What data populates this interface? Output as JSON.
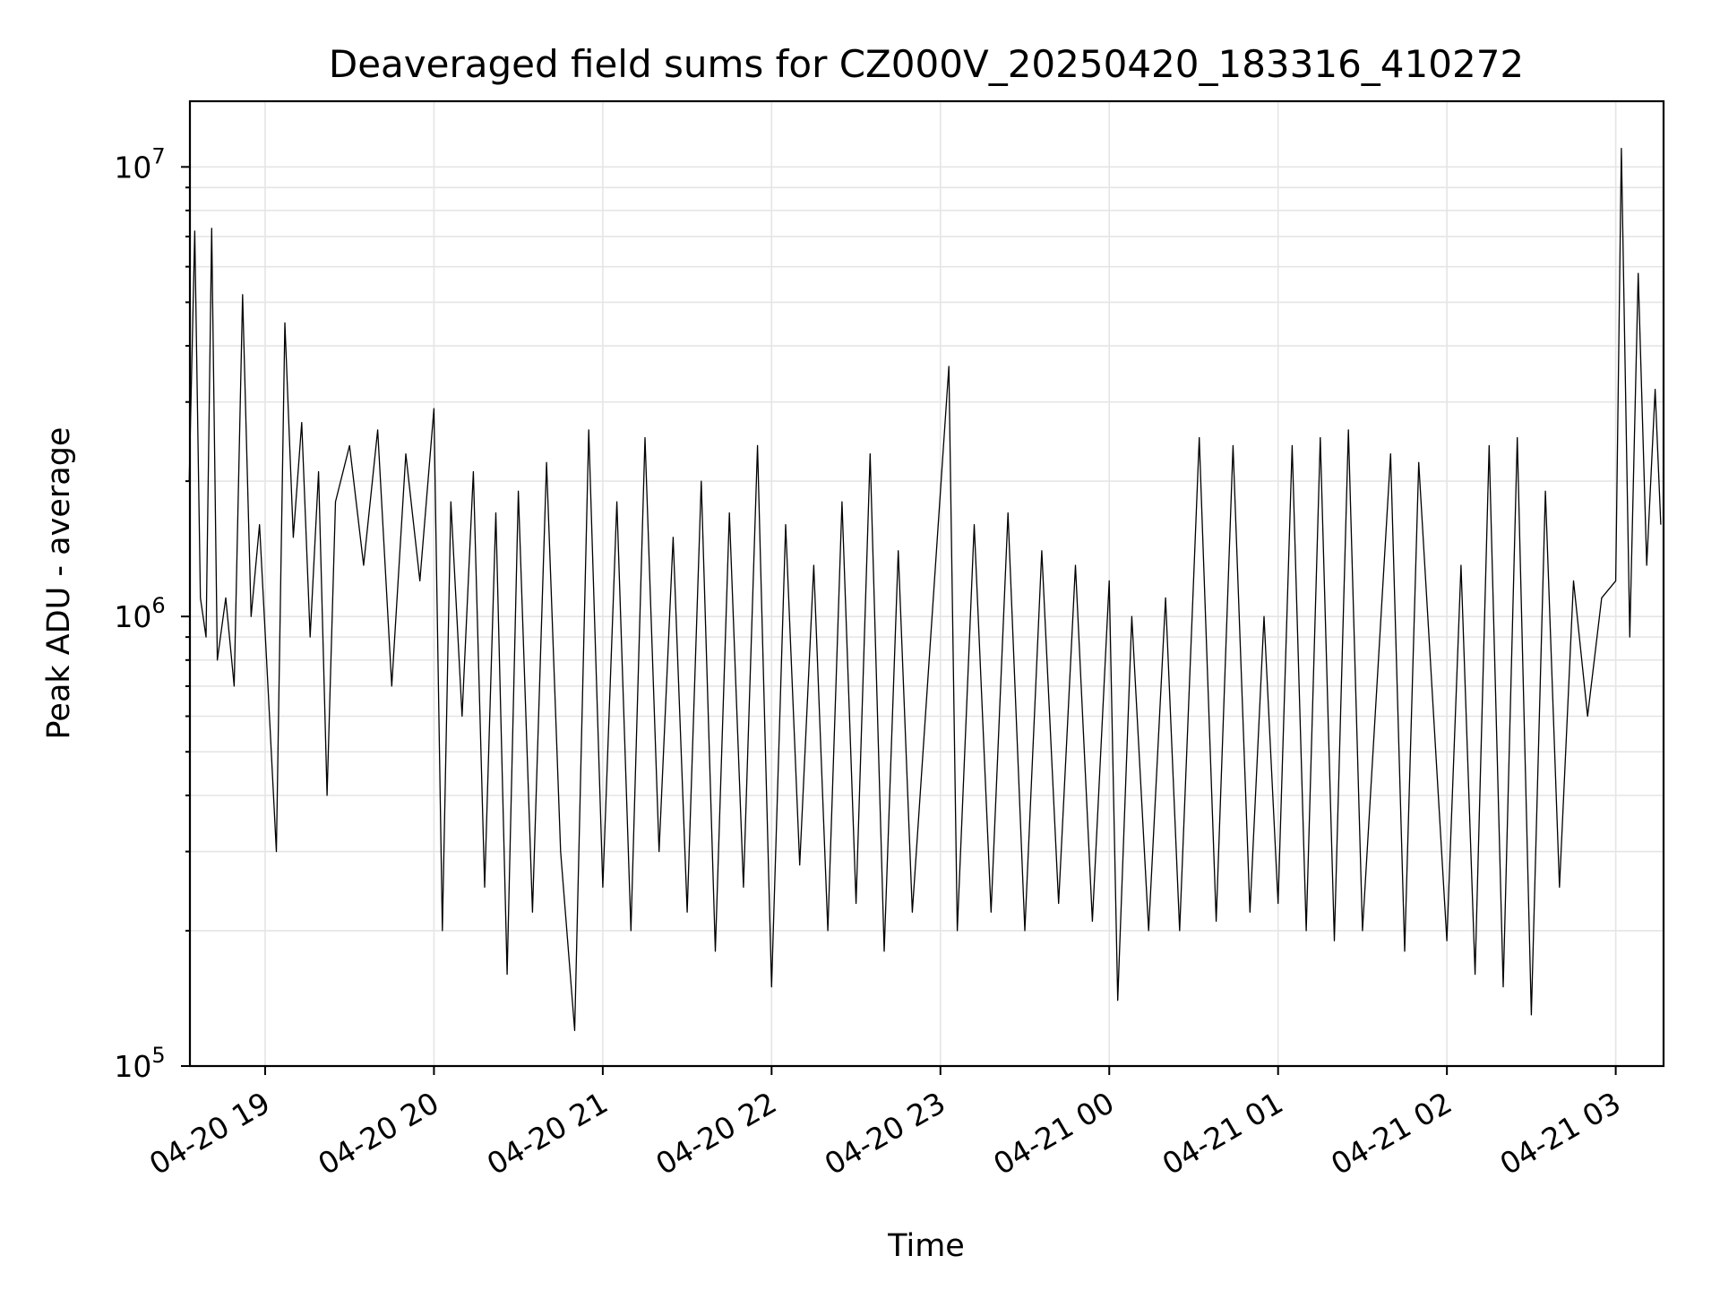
{
  "chart_data": {
    "type": "line",
    "title": "Deaveraged field sums for CZ000V_20250420_183316_410272",
    "xlabel": "Time",
    "ylabel": "Peak ADU - average",
    "yscale": "log",
    "ylim": [
      100000,
      14000000
    ],
    "xlim": [
      "2025-04-20 18:33:16",
      "2025-04-21 03:17:00"
    ],
    "grid": true,
    "line_color": "#000000",
    "x_ticks": [
      {
        "label": "04-20 19",
        "time": "2025-04-20 19:00"
      },
      {
        "label": "04-20 20",
        "time": "2025-04-20 20:00"
      },
      {
        "label": "04-20 21",
        "time": "2025-04-20 21:00"
      },
      {
        "label": "04-20 22",
        "time": "2025-04-20 22:00"
      },
      {
        "label": "04-20 23",
        "time": "2025-04-20 23:00"
      },
      {
        "label": "04-21 00",
        "time": "2025-04-21 00:00"
      },
      {
        "label": "04-21 01",
        "time": "2025-04-21 01:00"
      },
      {
        "label": "04-21 02",
        "time": "2025-04-21 02:00"
      },
      {
        "label": "04-21 03",
        "time": "2025-04-21 03:00"
      }
    ],
    "y_ticks": [
      {
        "base": "10",
        "exp": "5",
        "value": 100000
      },
      {
        "base": "10",
        "exp": "6",
        "value": 1000000
      },
      {
        "base": "10",
        "exp": "7",
        "value": 10000000
      }
    ],
    "series": [
      {
        "values_note_free": true,
        "points": [
          [
            "2025-04-20 18:33",
            2000000
          ],
          [
            "2025-04-20 18:35",
            7200000
          ],
          [
            "2025-04-20 18:37",
            1100000
          ],
          [
            "2025-04-20 18:39",
            900000
          ],
          [
            "2025-04-20 18:41",
            7300000
          ],
          [
            "2025-04-20 18:43",
            800000
          ],
          [
            "2025-04-20 18:46",
            1100000
          ],
          [
            "2025-04-20 18:49",
            700000
          ],
          [
            "2025-04-20 18:52",
            5200000
          ],
          [
            "2025-04-20 18:55",
            1000000
          ],
          [
            "2025-04-20 18:58",
            1600000
          ],
          [
            "2025-04-20 19:01",
            700000
          ],
          [
            "2025-04-20 19:04",
            300000
          ],
          [
            "2025-04-20 19:07",
            4500000
          ],
          [
            "2025-04-20 19:10",
            1500000
          ],
          [
            "2025-04-20 19:13",
            2700000
          ],
          [
            "2025-04-20 19:16",
            900000
          ],
          [
            "2025-04-20 19:19",
            2100000
          ],
          [
            "2025-04-20 19:22",
            400000
          ],
          [
            "2025-04-20 19:25",
            1800000
          ],
          [
            "2025-04-20 19:30",
            2400000
          ],
          [
            "2025-04-20 19:35",
            1300000
          ],
          [
            "2025-04-20 19:40",
            2600000
          ],
          [
            "2025-04-20 19:45",
            700000
          ],
          [
            "2025-04-20 19:50",
            2300000
          ],
          [
            "2025-04-20 19:55",
            1200000
          ],
          [
            "2025-04-20 20:00",
            2900000
          ],
          [
            "2025-04-20 20:03",
            200000
          ],
          [
            "2025-04-20 20:06",
            1800000
          ],
          [
            "2025-04-20 20:10",
            600000
          ],
          [
            "2025-04-20 20:14",
            2100000
          ],
          [
            "2025-04-20 20:18",
            250000
          ],
          [
            "2025-04-20 20:22",
            1700000
          ],
          [
            "2025-04-20 20:26",
            160000
          ],
          [
            "2025-04-20 20:30",
            1900000
          ],
          [
            "2025-04-20 20:35",
            220000
          ],
          [
            "2025-04-20 20:40",
            2200000
          ],
          [
            "2025-04-20 20:45",
            300000
          ],
          [
            "2025-04-20 20:50",
            120000
          ],
          [
            "2025-04-20 20:55",
            2600000
          ],
          [
            "2025-04-20 21:00",
            250000
          ],
          [
            "2025-04-20 21:05",
            1800000
          ],
          [
            "2025-04-20 21:10",
            200000
          ],
          [
            "2025-04-20 21:15",
            2500000
          ],
          [
            "2025-04-20 21:20",
            300000
          ],
          [
            "2025-04-20 21:25",
            1500000
          ],
          [
            "2025-04-20 21:30",
            220000
          ],
          [
            "2025-04-20 21:35",
            2000000
          ],
          [
            "2025-04-20 21:40",
            180000
          ],
          [
            "2025-04-20 21:45",
            1700000
          ],
          [
            "2025-04-20 21:50",
            250000
          ],
          [
            "2025-04-20 21:55",
            2400000
          ],
          [
            "2025-04-20 22:00",
            150000
          ],
          [
            "2025-04-20 22:05",
            1600000
          ],
          [
            "2025-04-20 22:10",
            280000
          ],
          [
            "2025-04-20 22:15",
            1300000
          ],
          [
            "2025-04-20 22:20",
            200000
          ],
          [
            "2025-04-20 22:25",
            1800000
          ],
          [
            "2025-04-20 22:30",
            230000
          ],
          [
            "2025-04-20 22:35",
            2300000
          ],
          [
            "2025-04-20 22:40",
            180000
          ],
          [
            "2025-04-20 22:45",
            1400000
          ],
          [
            "2025-04-20 22:50",
            220000
          ],
          [
            "2025-04-20 23:00",
            1900000
          ],
          [
            "2025-04-20 23:03",
            3600000
          ],
          [
            "2025-04-20 23:06",
            200000
          ],
          [
            "2025-04-20 23:12",
            1600000
          ],
          [
            "2025-04-20 23:18",
            220000
          ],
          [
            "2025-04-20 23:24",
            1700000
          ],
          [
            "2025-04-20 23:30",
            200000
          ],
          [
            "2025-04-20 23:36",
            1400000
          ],
          [
            "2025-04-20 23:42",
            230000
          ],
          [
            "2025-04-20 23:48",
            1300000
          ],
          [
            "2025-04-20 23:54",
            210000
          ],
          [
            "2025-04-21 00:00",
            1200000
          ],
          [
            "2025-04-21 00:03",
            140000
          ],
          [
            "2025-04-21 00:08",
            1000000
          ],
          [
            "2025-04-21 00:14",
            200000
          ],
          [
            "2025-04-21 00:20",
            1100000
          ],
          [
            "2025-04-21 00:25",
            200000
          ],
          [
            "2025-04-21 00:32",
            2500000
          ],
          [
            "2025-04-21 00:38",
            210000
          ],
          [
            "2025-04-21 00:44",
            2400000
          ],
          [
            "2025-04-21 00:50",
            220000
          ],
          [
            "2025-04-21 00:55",
            1000000
          ],
          [
            "2025-04-21 01:00",
            230000
          ],
          [
            "2025-04-21 01:05",
            2400000
          ],
          [
            "2025-04-21 01:10",
            200000
          ],
          [
            "2025-04-21 01:15",
            2500000
          ],
          [
            "2025-04-21 01:20",
            190000
          ],
          [
            "2025-04-21 01:25",
            2600000
          ],
          [
            "2025-04-21 01:30",
            200000
          ],
          [
            "2025-04-21 01:40",
            2300000
          ],
          [
            "2025-04-21 01:45",
            180000
          ],
          [
            "2025-04-21 01:50",
            2200000
          ],
          [
            "2025-04-21 02:00",
            190000
          ],
          [
            "2025-04-21 02:05",
            1300000
          ],
          [
            "2025-04-21 02:10",
            160000
          ],
          [
            "2025-04-21 02:15",
            2400000
          ],
          [
            "2025-04-21 02:20",
            150000
          ],
          [
            "2025-04-21 02:25",
            2500000
          ],
          [
            "2025-04-21 02:30",
            130000
          ],
          [
            "2025-04-21 02:35",
            1900000
          ],
          [
            "2025-04-21 02:40",
            250000
          ],
          [
            "2025-04-21 02:45",
            1200000
          ],
          [
            "2025-04-21 02:50",
            600000
          ],
          [
            "2025-04-21 02:55",
            1100000
          ],
          [
            "2025-04-21 03:00",
            1200000
          ],
          [
            "2025-04-21 03:02",
            11000000
          ],
          [
            "2025-04-21 03:05",
            900000
          ],
          [
            "2025-04-21 03:08",
            5800000
          ],
          [
            "2025-04-21 03:11",
            1300000
          ],
          [
            "2025-04-21 03:14",
            3200000
          ],
          [
            "2025-04-21 03:16",
            1600000
          ]
        ]
      }
    ]
  }
}
